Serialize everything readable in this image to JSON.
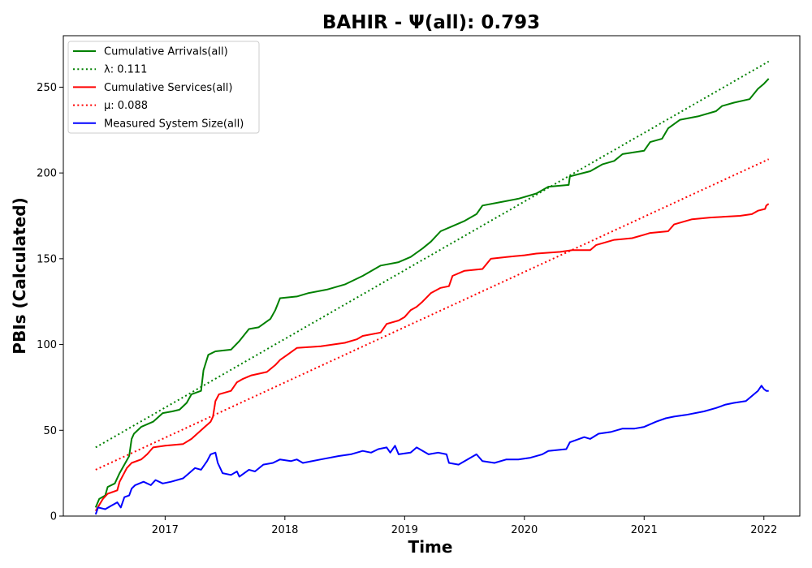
{
  "chart_data": {
    "type": "line",
    "title": "BAHIR -  Ψ(all): 0.793",
    "xlabel": "Time",
    "ylabel": "PBIs (Calculated)",
    "xlim": [
      2016.15,
      2022.3
    ],
    "ylim": [
      0,
      280
    ],
    "x_ticks": [
      2017,
      2018,
      2019,
      2020,
      2021,
      2022
    ],
    "y_ticks": [
      0,
      50,
      100,
      150,
      200,
      250
    ],
    "legend_position": "top-left",
    "grid": false,
    "series": [
      {
        "name": "Cumulative Arrivals(all)",
        "style": "solid",
        "color": "#008000",
        "points": [
          [
            2016.42,
            5
          ],
          [
            2016.45,
            10
          ],
          [
            2016.5,
            12
          ],
          [
            2016.52,
            17
          ],
          [
            2016.58,
            19
          ],
          [
            2016.62,
            25
          ],
          [
            2016.7,
            35
          ],
          [
            2016.72,
            45
          ],
          [
            2016.74,
            48
          ],
          [
            2016.8,
            52
          ],
          [
            2016.9,
            55
          ],
          [
            2016.98,
            60
          ],
          [
            2017.06,
            61
          ],
          [
            2017.12,
            62
          ],
          [
            2017.18,
            66
          ],
          [
            2017.22,
            71
          ],
          [
            2017.3,
            73
          ],
          [
            2017.32,
            85
          ],
          [
            2017.36,
            94
          ],
          [
            2017.42,
            96
          ],
          [
            2017.55,
            97
          ],
          [
            2017.62,
            102
          ],
          [
            2017.7,
            109
          ],
          [
            2017.78,
            110
          ],
          [
            2017.88,
            115
          ],
          [
            2017.92,
            120
          ],
          [
            2017.96,
            127
          ],
          [
            2018.1,
            128
          ],
          [
            2018.2,
            130
          ],
          [
            2018.35,
            132
          ],
          [
            2018.5,
            135
          ],
          [
            2018.65,
            140
          ],
          [
            2018.8,
            146
          ],
          [
            2018.95,
            148
          ],
          [
            2019.05,
            151
          ],
          [
            2019.15,
            156
          ],
          [
            2019.22,
            160
          ],
          [
            2019.3,
            166
          ],
          [
            2019.4,
            169
          ],
          [
            2019.5,
            172
          ],
          [
            2019.6,
            176
          ],
          [
            2019.65,
            181
          ],
          [
            2019.8,
            183
          ],
          [
            2019.95,
            185
          ],
          [
            2020.1,
            188
          ],
          [
            2020.2,
            192
          ],
          [
            2020.37,
            193
          ],
          [
            2020.38,
            198
          ],
          [
            2020.55,
            201
          ],
          [
            2020.65,
            205
          ],
          [
            2020.75,
            207
          ],
          [
            2020.82,
            211
          ],
          [
            2021.0,
            213
          ],
          [
            2021.05,
            218
          ],
          [
            2021.15,
            220
          ],
          [
            2021.2,
            226
          ],
          [
            2021.3,
            231
          ],
          [
            2021.45,
            233
          ],
          [
            2021.6,
            236
          ],
          [
            2021.65,
            239
          ],
          [
            2021.75,
            241
          ],
          [
            2021.88,
            243
          ],
          [
            2021.95,
            249
          ],
          [
            2022.0,
            252
          ],
          [
            2022.04,
            255
          ]
        ]
      },
      {
        "name": "λ: 0.111",
        "style": "dotted",
        "color": "#008000",
        "points": [
          [
            2016.42,
            40
          ],
          [
            2022.04,
            265
          ]
        ]
      },
      {
        "name": "Cumulative Services(all)",
        "style": "solid",
        "color": "#ff0000",
        "points": [
          [
            2016.42,
            3
          ],
          [
            2016.48,
            10
          ],
          [
            2016.52,
            13
          ],
          [
            2016.6,
            15
          ],
          [
            2016.62,
            20
          ],
          [
            2016.68,
            28
          ],
          [
            2016.72,
            31
          ],
          [
            2016.8,
            33
          ],
          [
            2016.85,
            36
          ],
          [
            2016.9,
            40
          ],
          [
            2017.0,
            41
          ],
          [
            2017.15,
            42
          ],
          [
            2017.22,
            45
          ],
          [
            2017.3,
            50
          ],
          [
            2017.38,
            55
          ],
          [
            2017.4,
            58
          ],
          [
            2017.42,
            67
          ],
          [
            2017.45,
            71
          ],
          [
            2017.55,
            73
          ],
          [
            2017.6,
            78
          ],
          [
            2017.65,
            80
          ],
          [
            2017.72,
            82
          ],
          [
            2017.85,
            84
          ],
          [
            2017.92,
            88
          ],
          [
            2017.96,
            91
          ],
          [
            2018.02,
            94
          ],
          [
            2018.1,
            98
          ],
          [
            2018.3,
            99
          ],
          [
            2018.4,
            100
          ],
          [
            2018.5,
            101
          ],
          [
            2018.6,
            103
          ],
          [
            2018.65,
            105
          ],
          [
            2018.8,
            107
          ],
          [
            2018.85,
            112
          ],
          [
            2018.95,
            114
          ],
          [
            2019.0,
            116
          ],
          [
            2019.05,
            120
          ],
          [
            2019.1,
            122
          ],
          [
            2019.15,
            125
          ],
          [
            2019.22,
            130
          ],
          [
            2019.3,
            133
          ],
          [
            2019.37,
            134
          ],
          [
            2019.4,
            140
          ],
          [
            2019.5,
            143
          ],
          [
            2019.65,
            144
          ],
          [
            2019.72,
            150
          ],
          [
            2019.85,
            151
          ],
          [
            2020.0,
            152
          ],
          [
            2020.1,
            153
          ],
          [
            2020.3,
            154
          ],
          [
            2020.4,
            155
          ],
          [
            2020.55,
            155
          ],
          [
            2020.6,
            158
          ],
          [
            2020.75,
            161
          ],
          [
            2020.9,
            162
          ],
          [
            2021.0,
            164
          ],
          [
            2021.05,
            165
          ],
          [
            2021.2,
            166
          ],
          [
            2021.25,
            170
          ],
          [
            2021.4,
            173
          ],
          [
            2021.55,
            174
          ],
          [
            2021.8,
            175
          ],
          [
            2021.9,
            176
          ],
          [
            2021.95,
            178
          ],
          [
            2022.01,
            179
          ],
          [
            2022.02,
            181
          ],
          [
            2022.04,
            182
          ]
        ]
      },
      {
        "name": "μ: 0.088",
        "style": "dotted",
        "color": "#ff0000",
        "points": [
          [
            2016.42,
            27
          ],
          [
            2022.04,
            208
          ]
        ]
      },
      {
        "name": "Measured System Size(all)",
        "style": "solid",
        "color": "#0000ff",
        "points": [
          [
            2016.42,
            1
          ],
          [
            2016.44,
            5
          ],
          [
            2016.5,
            4
          ],
          [
            2016.55,
            6
          ],
          [
            2016.6,
            8
          ],
          [
            2016.63,
            5
          ],
          [
            2016.66,
            11
          ],
          [
            2016.7,
            12
          ],
          [
            2016.72,
            16
          ],
          [
            2016.75,
            18
          ],
          [
            2016.82,
            20
          ],
          [
            2016.88,
            18
          ],
          [
            2016.92,
            21
          ],
          [
            2016.98,
            19
          ],
          [
            2017.05,
            20
          ],
          [
            2017.15,
            22
          ],
          [
            2017.2,
            25
          ],
          [
            2017.25,
            28
          ],
          [
            2017.3,
            27
          ],
          [
            2017.35,
            32
          ],
          [
            2017.38,
            36
          ],
          [
            2017.42,
            37
          ],
          [
            2017.44,
            31
          ],
          [
            2017.48,
            25
          ],
          [
            2017.55,
            24
          ],
          [
            2017.6,
            26
          ],
          [
            2017.62,
            23
          ],
          [
            2017.7,
            27
          ],
          [
            2017.75,
            26
          ],
          [
            2017.82,
            30
          ],
          [
            2017.9,
            31
          ],
          [
            2017.96,
            33
          ],
          [
            2018.05,
            32
          ],
          [
            2018.1,
            33
          ],
          [
            2018.15,
            31
          ],
          [
            2018.3,
            33
          ],
          [
            2018.45,
            35
          ],
          [
            2018.55,
            36
          ],
          [
            2018.65,
            38
          ],
          [
            2018.72,
            37
          ],
          [
            2018.78,
            39
          ],
          [
            2018.85,
            40
          ],
          [
            2018.88,
            37
          ],
          [
            2018.92,
            41
          ],
          [
            2018.95,
            36
          ],
          [
            2019.05,
            37
          ],
          [
            2019.1,
            40
          ],
          [
            2019.2,
            36
          ],
          [
            2019.28,
            37
          ],
          [
            2019.35,
            36
          ],
          [
            2019.37,
            31
          ],
          [
            2019.45,
            30
          ],
          [
            2019.55,
            34
          ],
          [
            2019.6,
            36
          ],
          [
            2019.65,
            32
          ],
          [
            2019.75,
            31
          ],
          [
            2019.85,
            33
          ],
          [
            2019.95,
            33
          ],
          [
            2020.05,
            34
          ],
          [
            2020.15,
            36
          ],
          [
            2020.2,
            38
          ],
          [
            2020.35,
            39
          ],
          [
            2020.38,
            43
          ],
          [
            2020.5,
            46
          ],
          [
            2020.55,
            45
          ],
          [
            2020.62,
            48
          ],
          [
            2020.72,
            49
          ],
          [
            2020.82,
            51
          ],
          [
            2020.92,
            51
          ],
          [
            2021.0,
            52
          ],
          [
            2021.1,
            55
          ],
          [
            2021.18,
            57
          ],
          [
            2021.25,
            58
          ],
          [
            2021.35,
            59
          ],
          [
            2021.5,
            61
          ],
          [
            2021.6,
            63
          ],
          [
            2021.68,
            65
          ],
          [
            2021.75,
            66
          ],
          [
            2021.85,
            67
          ],
          [
            2021.9,
            70
          ],
          [
            2021.95,
            73
          ],
          [
            2021.98,
            76
          ],
          [
            2022.0,
            74
          ],
          [
            2022.02,
            73
          ],
          [
            2022.04,
            73
          ]
        ]
      }
    ]
  }
}
